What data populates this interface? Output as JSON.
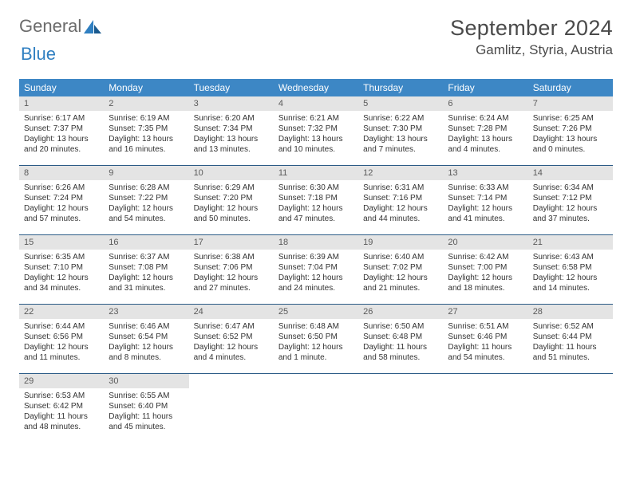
{
  "logo": {
    "word1": "General",
    "word2": "Blue"
  },
  "header": {
    "month": "September 2024",
    "location": "Gamlitz, Styria, Austria"
  },
  "colors": {
    "header_bg": "#3d87c5",
    "header_text": "#ffffff",
    "band_bg": "#e4e4e4",
    "week_border": "#2b5b86",
    "logo_gray": "#6b6b6b",
    "logo_blue": "#2f7fc1"
  },
  "day_names": [
    "Sunday",
    "Monday",
    "Tuesday",
    "Wednesday",
    "Thursday",
    "Friday",
    "Saturday"
  ],
  "weeks": [
    [
      {
        "n": "1",
        "sr": "Sunrise: 6:17 AM",
        "ss": "Sunset: 7:37 PM",
        "d1": "Daylight: 13 hours",
        "d2": "and 20 minutes."
      },
      {
        "n": "2",
        "sr": "Sunrise: 6:19 AM",
        "ss": "Sunset: 7:35 PM",
        "d1": "Daylight: 13 hours",
        "d2": "and 16 minutes."
      },
      {
        "n": "3",
        "sr": "Sunrise: 6:20 AM",
        "ss": "Sunset: 7:34 PM",
        "d1": "Daylight: 13 hours",
        "d2": "and 13 minutes."
      },
      {
        "n": "4",
        "sr": "Sunrise: 6:21 AM",
        "ss": "Sunset: 7:32 PM",
        "d1": "Daylight: 13 hours",
        "d2": "and 10 minutes."
      },
      {
        "n": "5",
        "sr": "Sunrise: 6:22 AM",
        "ss": "Sunset: 7:30 PM",
        "d1": "Daylight: 13 hours",
        "d2": "and 7 minutes."
      },
      {
        "n": "6",
        "sr": "Sunrise: 6:24 AM",
        "ss": "Sunset: 7:28 PM",
        "d1": "Daylight: 13 hours",
        "d2": "and 4 minutes."
      },
      {
        "n": "7",
        "sr": "Sunrise: 6:25 AM",
        "ss": "Sunset: 7:26 PM",
        "d1": "Daylight: 13 hours",
        "d2": "and 0 minutes."
      }
    ],
    [
      {
        "n": "8",
        "sr": "Sunrise: 6:26 AM",
        "ss": "Sunset: 7:24 PM",
        "d1": "Daylight: 12 hours",
        "d2": "and 57 minutes."
      },
      {
        "n": "9",
        "sr": "Sunrise: 6:28 AM",
        "ss": "Sunset: 7:22 PM",
        "d1": "Daylight: 12 hours",
        "d2": "and 54 minutes."
      },
      {
        "n": "10",
        "sr": "Sunrise: 6:29 AM",
        "ss": "Sunset: 7:20 PM",
        "d1": "Daylight: 12 hours",
        "d2": "and 50 minutes."
      },
      {
        "n": "11",
        "sr": "Sunrise: 6:30 AM",
        "ss": "Sunset: 7:18 PM",
        "d1": "Daylight: 12 hours",
        "d2": "and 47 minutes."
      },
      {
        "n": "12",
        "sr": "Sunrise: 6:31 AM",
        "ss": "Sunset: 7:16 PM",
        "d1": "Daylight: 12 hours",
        "d2": "and 44 minutes."
      },
      {
        "n": "13",
        "sr": "Sunrise: 6:33 AM",
        "ss": "Sunset: 7:14 PM",
        "d1": "Daylight: 12 hours",
        "d2": "and 41 minutes."
      },
      {
        "n": "14",
        "sr": "Sunrise: 6:34 AM",
        "ss": "Sunset: 7:12 PM",
        "d1": "Daylight: 12 hours",
        "d2": "and 37 minutes."
      }
    ],
    [
      {
        "n": "15",
        "sr": "Sunrise: 6:35 AM",
        "ss": "Sunset: 7:10 PM",
        "d1": "Daylight: 12 hours",
        "d2": "and 34 minutes."
      },
      {
        "n": "16",
        "sr": "Sunrise: 6:37 AM",
        "ss": "Sunset: 7:08 PM",
        "d1": "Daylight: 12 hours",
        "d2": "and 31 minutes."
      },
      {
        "n": "17",
        "sr": "Sunrise: 6:38 AM",
        "ss": "Sunset: 7:06 PM",
        "d1": "Daylight: 12 hours",
        "d2": "and 27 minutes."
      },
      {
        "n": "18",
        "sr": "Sunrise: 6:39 AM",
        "ss": "Sunset: 7:04 PM",
        "d1": "Daylight: 12 hours",
        "d2": "and 24 minutes."
      },
      {
        "n": "19",
        "sr": "Sunrise: 6:40 AM",
        "ss": "Sunset: 7:02 PM",
        "d1": "Daylight: 12 hours",
        "d2": "and 21 minutes."
      },
      {
        "n": "20",
        "sr": "Sunrise: 6:42 AM",
        "ss": "Sunset: 7:00 PM",
        "d1": "Daylight: 12 hours",
        "d2": "and 18 minutes."
      },
      {
        "n": "21",
        "sr": "Sunrise: 6:43 AM",
        "ss": "Sunset: 6:58 PM",
        "d1": "Daylight: 12 hours",
        "d2": "and 14 minutes."
      }
    ],
    [
      {
        "n": "22",
        "sr": "Sunrise: 6:44 AM",
        "ss": "Sunset: 6:56 PM",
        "d1": "Daylight: 12 hours",
        "d2": "and 11 minutes."
      },
      {
        "n": "23",
        "sr": "Sunrise: 6:46 AM",
        "ss": "Sunset: 6:54 PM",
        "d1": "Daylight: 12 hours",
        "d2": "and 8 minutes."
      },
      {
        "n": "24",
        "sr": "Sunrise: 6:47 AM",
        "ss": "Sunset: 6:52 PM",
        "d1": "Daylight: 12 hours",
        "d2": "and 4 minutes."
      },
      {
        "n": "25",
        "sr": "Sunrise: 6:48 AM",
        "ss": "Sunset: 6:50 PM",
        "d1": "Daylight: 12 hours",
        "d2": "and 1 minute."
      },
      {
        "n": "26",
        "sr": "Sunrise: 6:50 AM",
        "ss": "Sunset: 6:48 PM",
        "d1": "Daylight: 11 hours",
        "d2": "and 58 minutes."
      },
      {
        "n": "27",
        "sr": "Sunrise: 6:51 AM",
        "ss": "Sunset: 6:46 PM",
        "d1": "Daylight: 11 hours",
        "d2": "and 54 minutes."
      },
      {
        "n": "28",
        "sr": "Sunrise: 6:52 AM",
        "ss": "Sunset: 6:44 PM",
        "d1": "Daylight: 11 hours",
        "d2": "and 51 minutes."
      }
    ],
    [
      {
        "n": "29",
        "sr": "Sunrise: 6:53 AM",
        "ss": "Sunset: 6:42 PM",
        "d1": "Daylight: 11 hours",
        "d2": "and 48 minutes."
      },
      {
        "n": "30",
        "sr": "Sunrise: 6:55 AM",
        "ss": "Sunset: 6:40 PM",
        "d1": "Daylight: 11 hours",
        "d2": "and 45 minutes."
      },
      null,
      null,
      null,
      null,
      null
    ]
  ]
}
